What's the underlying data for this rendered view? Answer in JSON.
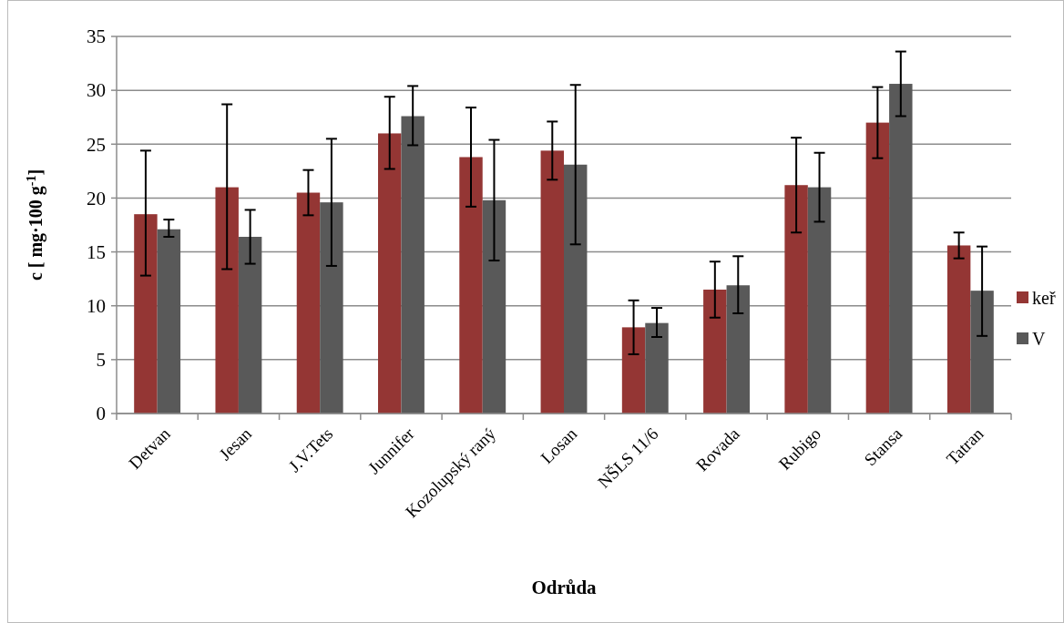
{
  "chart_data": {
    "type": "bar",
    "xlabel": "Odrůda",
    "ylabel": "c [ mg·100 g$^{-1}$]",
    "categories": [
      "Detvan",
      "Jesan",
      "J.V.Tets",
      "Junnifer",
      "Kozolupský raný",
      "Losan",
      "NŠLS 11/6",
      "Rovada",
      "Rubigo",
      "Stansa",
      "Tatran"
    ],
    "series": [
      {
        "name": "keř",
        "color": "#943634",
        "values": [
          18.5,
          21.0,
          20.5,
          26.0,
          23.8,
          24.4,
          8.0,
          11.5,
          21.2,
          27.0,
          15.6
        ],
        "errors": [
          [
            12.8,
            24.4
          ],
          [
            13.4,
            28.7
          ],
          [
            18.4,
            22.6
          ],
          [
            22.7,
            29.4
          ],
          [
            19.2,
            28.4
          ],
          [
            21.7,
            27.1
          ],
          [
            5.5,
            10.5
          ],
          [
            8.9,
            14.1
          ],
          [
            16.8,
            25.6
          ],
          [
            23.7,
            30.3
          ],
          [
            14.4,
            16.8
          ]
        ]
      },
      {
        "name": "V",
        "color": "#595959",
        "values": [
          17.1,
          16.4,
          19.6,
          27.6,
          19.8,
          23.1,
          8.4,
          11.9,
          21.0,
          30.6,
          11.4
        ],
        "errors": [
          [
            16.4,
            18.0
          ],
          [
            13.9,
            18.9
          ],
          [
            13.7,
            25.5
          ],
          [
            24.9,
            30.4
          ],
          [
            14.2,
            25.4
          ],
          [
            15.7,
            30.5
          ],
          [
            7.1,
            9.8
          ],
          [
            9.3,
            14.6
          ],
          [
            17.8,
            24.2
          ],
          [
            27.6,
            33.6
          ],
          [
            7.2,
            15.5
          ]
        ]
      }
    ],
    "ylim": [
      0,
      35
    ],
    "yticks": [
      0,
      5,
      10,
      15,
      20,
      25,
      30,
      35
    ],
    "grid": "y",
    "legend": "right"
  }
}
